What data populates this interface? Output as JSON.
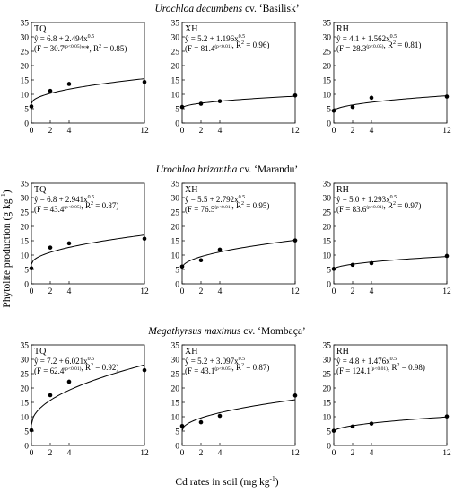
{
  "figure": {
    "y_axis_label": "Phytolite production (g kg",
    "y_axis_label_sup": "-1",
    "y_axis_label_end": ")",
    "x_axis_label": "Cd rates in soil (mg kg",
    "x_axis_label_sup": "-1",
    "x_axis_label_end": ")"
  },
  "rows": [
    {
      "title": "Urochloa decumbens",
      "suffix": " cv. ‘Basilisk’"
    },
    {
      "title": "Urochloa brizantha",
      "suffix": " cv. ‘Marandu’"
    },
    {
      "title": "Megathyrsus maximus",
      "suffix": " cv. ‘Mombaça’"
    }
  ],
  "chart_data": [
    {
      "type": "scatter",
      "row": 0,
      "col": 0,
      "panel_label": "TQ",
      "equation": {
        "a": "6.8",
        "b": "2.494",
        "exp": "0.5",
        "F": "30.7",
        "sig": "(p<0.05)",
        "extra": "**",
        "r2": "0.85"
      },
      "fit": {
        "a": 6.8,
        "b": 2.494
      },
      "x": [
        0,
        2,
        4,
        12
      ],
      "y": [
        5.8,
        11.2,
        13.6,
        14.3
      ],
      "xlim": [
        0,
        12
      ],
      "ylim": [
        0,
        35
      ],
      "xticks": [
        0,
        2,
        4,
        12
      ],
      "yticks": [
        0,
        5,
        10,
        15,
        20,
        25,
        30,
        35
      ]
    },
    {
      "type": "scatter",
      "row": 0,
      "col": 1,
      "panel_label": "XH",
      "equation": {
        "a": "5.2",
        "b": "1.196",
        "exp": "0.5",
        "F": "81.4",
        "sig": "(p<0.01)",
        "extra": "",
        "r2": "0.96"
      },
      "fit": {
        "a": 5.2,
        "b": 1.196
      },
      "x": [
        0,
        2,
        4,
        12
      ],
      "y": [
        5.6,
        6.7,
        7.6,
        9.6
      ],
      "xlim": [
        0,
        12
      ],
      "ylim": [
        0,
        35
      ],
      "xticks": [
        0,
        2,
        4,
        12
      ],
      "yticks": [
        0,
        5,
        10,
        15,
        20,
        25,
        30,
        35
      ]
    },
    {
      "type": "scatter",
      "row": 0,
      "col": 2,
      "panel_label": "RH",
      "equation": {
        "a": "4.1",
        "b": "1.562",
        "exp": "0.5",
        "F": "28.3",
        "sig": "(p<0.05)",
        "extra": "",
        "r2": "0.81"
      },
      "fit": {
        "a": 4.1,
        "b": 1.562
      },
      "x": [
        0,
        2,
        4,
        12
      ],
      "y": [
        4.3,
        5.6,
        8.8,
        9.2
      ],
      "xlim": [
        0,
        12
      ],
      "ylim": [
        0,
        35
      ],
      "xticks": [
        0,
        2,
        4,
        12
      ],
      "yticks": [
        0,
        5,
        10,
        15,
        20,
        25,
        30,
        35
      ]
    },
    {
      "type": "scatter",
      "row": 1,
      "col": 0,
      "panel_label": "TQ",
      "equation": {
        "a": "6.8",
        "b": "2.941",
        "exp": "0.5",
        "F": "43.4",
        "sig": "(p<0.05)",
        "extra": "",
        "r2": "0.87"
      },
      "fit": {
        "a": 6.8,
        "b": 2.941
      },
      "x": [
        0,
        2,
        4,
        12
      ],
      "y": [
        5.4,
        12.6,
        14.1,
        15.7
      ],
      "xlim": [
        0,
        12
      ],
      "ylim": [
        0,
        35
      ],
      "xticks": [
        0,
        2,
        4,
        12
      ],
      "yticks": [
        0,
        5,
        10,
        15,
        20,
        25,
        30,
        35
      ]
    },
    {
      "type": "scatter",
      "row": 1,
      "col": 1,
      "panel_label": "XH",
      "equation": {
        "a": "5.5",
        "b": "2.792",
        "exp": "0.5",
        "F": "76.5",
        "sig": "(p<0.01)",
        "extra": "",
        "r2": "0.95"
      },
      "fit": {
        "a": 5.5,
        "b": 2.792
      },
      "x": [
        0,
        2,
        4,
        12
      ],
      "y": [
        6.0,
        8.2,
        11.9,
        15.1
      ],
      "xlim": [
        0,
        12
      ],
      "ylim": [
        0,
        35
      ],
      "xticks": [
        0,
        2,
        4,
        12
      ],
      "yticks": [
        0,
        5,
        10,
        15,
        20,
        25,
        30,
        35
      ]
    },
    {
      "type": "scatter",
      "row": 1,
      "col": 2,
      "panel_label": "RH",
      "equation": {
        "a": "5.0",
        "b": "1.293",
        "exp": "0.5",
        "F": "83.6",
        "sig": "(p<0.01)",
        "extra": "",
        "r2": "0.97"
      },
      "fit": {
        "a": 5.0,
        "b": 1.293
      },
      "x": [
        0,
        2,
        4,
        12
      ],
      "y": [
        5.2,
        6.6,
        7.2,
        9.7
      ],
      "xlim": [
        0,
        12
      ],
      "ylim": [
        0,
        35
      ],
      "xticks": [
        0,
        2,
        4,
        12
      ],
      "yticks": [
        0,
        5,
        10,
        15,
        20,
        25,
        30,
        35
      ]
    },
    {
      "type": "scatter",
      "row": 2,
      "col": 0,
      "panel_label": "TQ",
      "equation": {
        "a": "7.2",
        "b": "6.021",
        "exp": "0.5",
        "F": "62.4",
        "sig": "(p<0.01)",
        "extra": "",
        "r2": "0.92"
      },
      "fit": {
        "a": 7.2,
        "b": 6.021
      },
      "x": [
        0,
        2,
        4,
        12
      ],
      "y": [
        5.3,
        17.5,
        22.2,
        26.2
      ],
      "xlim": [
        0,
        12
      ],
      "ylim": [
        0,
        35
      ],
      "xticks": [
        0,
        2,
        4,
        12
      ],
      "yticks": [
        0,
        5,
        10,
        15,
        20,
        25,
        30,
        35
      ]
    },
    {
      "type": "scatter",
      "row": 2,
      "col": 1,
      "panel_label": "XH",
      "equation": {
        "a": "5.2",
        "b": "3.097",
        "exp": "0.5",
        "F": "43.1",
        "sig": "(p<0.05)",
        "extra": "",
        "r2": "0.87"
      },
      "fit": {
        "a": 5.2,
        "b": 3.097
      },
      "x": [
        0,
        2,
        4,
        12
      ],
      "y": [
        6.8,
        8.1,
        10.3,
        17.4
      ],
      "xlim": [
        0,
        12
      ],
      "ylim": [
        0,
        35
      ],
      "xticks": [
        0,
        2,
        4,
        12
      ],
      "yticks": [
        0,
        5,
        10,
        15,
        20,
        25,
        30,
        35
      ]
    },
    {
      "type": "scatter",
      "row": 2,
      "col": 2,
      "panel_label": "RH",
      "equation": {
        "a": "4.8",
        "b": "1.476",
        "exp": "0.5",
        "F": "124.1",
        "sig": "(p<0.01)",
        "extra": "",
        "r2": "0.98"
      },
      "fit": {
        "a": 4.8,
        "b": 1.476
      },
      "x": [
        0,
        2,
        4,
        12
      ],
      "y": [
        5.1,
        6.6,
        7.6,
        10.1
      ],
      "xlim": [
        0,
        12
      ],
      "ylim": [
        0,
        35
      ],
      "xticks": [
        0,
        2,
        4,
        12
      ],
      "yticks": [
        0,
        5,
        10,
        15,
        20,
        25,
        30,
        35
      ]
    }
  ]
}
